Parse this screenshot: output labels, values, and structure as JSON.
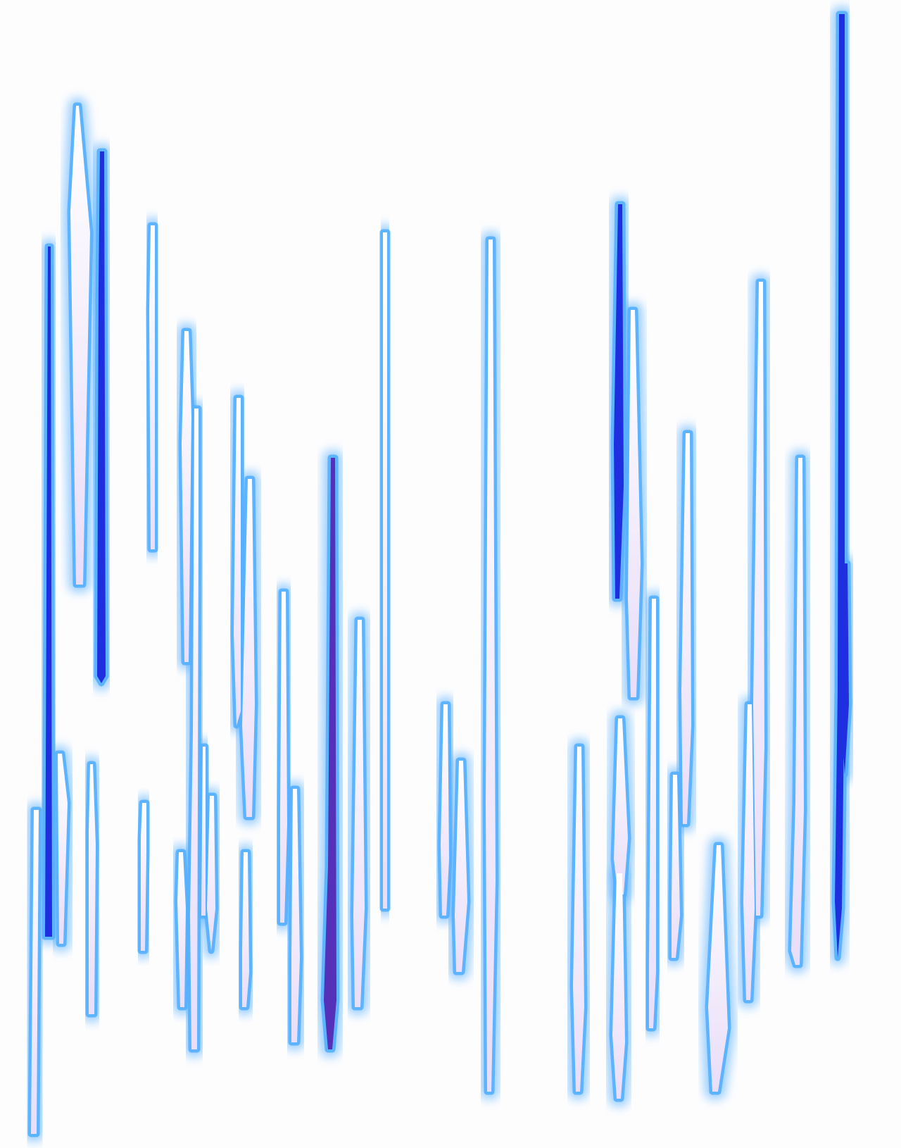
{
  "artwork": {
    "kind": "abstract neon spike pattern",
    "colors": {
      "background": "#fdfdfe",
      "glow": "#4aa8ff",
      "outline": "#55b0ff",
      "core_light": "#ffffff",
      "core_tint": "#e9ddf8",
      "deep_blue": "#1f2fe0",
      "violet": "#5530b8"
    }
  }
}
